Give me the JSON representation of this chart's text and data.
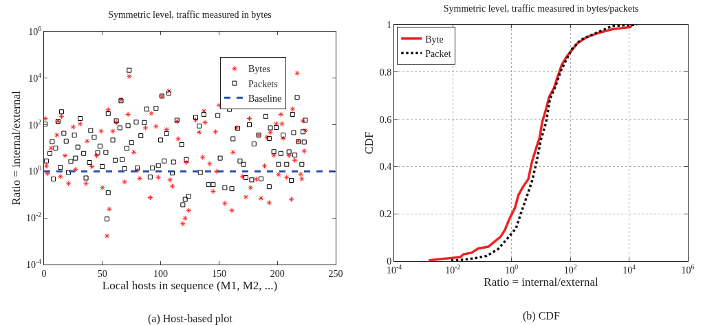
{
  "chart_data": [
    {
      "type": "scatter",
      "title": "Symmetric level, traffic measured in bytes",
      "xlabel": "Local hosts in sequence (M1, M2, ...)",
      "ylabel": "Ratio = internal/external",
      "log": "y",
      "grid": false,
      "legend": "top right",
      "xlim": [
        0,
        250
      ],
      "xticks": [
        0,
        50,
        100,
        150,
        200,
        250
      ],
      "ylim": [
        0.0001,
        1000000
      ],
      "yticks": [
        {
          "value": 0.0001,
          "label": "10$^{-4}$"
        },
        {
          "value": 0.01,
          "label": "10$^{-2}$"
        },
        {
          "value": 1,
          "label": "10$^{0}$"
        },
        {
          "value": 100,
          "label": "10$^{2}$"
        },
        {
          "value": 10000,
          "label": "10$^{4}$"
        },
        {
          "value": 1000000,
          "label": "10$^{6}$"
        }
      ],
      "series": [
        {
          "name": "Bytes",
          "color": "#ff2020",
          "marker": "cross",
          "x": [
            1,
            2,
            3,
            6,
            11,
            12,
            14,
            15,
            18,
            21,
            25,
            27,
            31,
            36,
            37,
            41,
            45,
            49,
            50,
            54,
            55,
            56,
            59,
            62,
            66,
            69,
            72,
            73,
            77,
            80,
            82,
            87,
            91,
            92,
            96,
            98,
            101,
            105,
            107,
            108,
            110,
            114,
            115,
            119,
            121,
            124,
            122,
            130,
            133,
            137,
            138,
            136,
            142,
            145,
            148,
            150,
            147,
            155,
            161,
            162,
            165,
            170,
            173,
            176,
            177,
            182,
            184,
            186,
            189,
            191,
            193,
            194,
            197,
            199,
            201,
            203,
            204,
            205,
            208,
            210,
            212,
            213,
            215,
            217,
            218,
            220,
            221,
            222,
            223,
            224
          ],
          "values": [
            185,
            1.7,
            0.8,
            10,
            36,
            140,
            0.6,
            230,
            4.7,
            0.3,
            80,
            1.2,
            110,
            0.3,
            20,
            1.6,
            4.7,
            53,
            0.2,
            0.0017,
            440,
            0.024,
            53,
            125,
            1200,
            0.35,
            280,
            12000,
            6.6,
            1.1,
            0.5,
            74,
            0.075,
            310,
            85,
            0.55,
            1700,
            63,
            2800,
            0.43,
            0.23,
            140,
            25,
            0.0056,
            0.0098,
            0.021,
            2.4,
            160,
            48,
            390,
            125,
            4,
            2.1,
            0.14,
            1,
            690,
            50,
            0.042,
            0.021,
            6.6,
            74,
            0.6,
            0.079,
            185,
            0.2,
            0.46,
            36,
            0.07,
            1.7,
            29,
            0.045,
            47,
            4.9,
            110,
            0.73,
            280,
            110,
            26,
            0.55,
            4.7,
            0.063,
            470,
            3,
            16500,
            20,
            0.76,
            0.48,
            147,
            7.4,
            57
          ]
        },
        {
          "name": "Packets",
          "color": "#000000",
          "marker": "square",
          "x": [
            1,
            2,
            5,
            7,
            8,
            10,
            12,
            14,
            15,
            17,
            19,
            21,
            23,
            26,
            27,
            29,
            31,
            34,
            36,
            39,
            40,
            43,
            46,
            48,
            50,
            53,
            54,
            55,
            55,
            59,
            61,
            62,
            65,
            66,
            67,
            69,
            71,
            72,
            73,
            75,
            79,
            80,
            83,
            86,
            88,
            91,
            93,
            96,
            98,
            100,
            101,
            103,
            105,
            107,
            110,
            111,
            114,
            118,
            119,
            121,
            124,
            122,
            130,
            133,
            134,
            137,
            141,
            145,
            149,
            151,
            155,
            159,
            161,
            162,
            166,
            168,
            171,
            173,
            176,
            178,
            180,
            184,
            186,
            190,
            193,
            193,
            194,
            197,
            199,
            201,
            203,
            205,
            208,
            210,
            212,
            213,
            214,
            215,
            217,
            218,
            221,
            222,
            223,
            224
          ],
          "values": [
            107,
            2.8,
            5.9,
            19,
            0.47,
            10,
            140,
            1.5,
            360,
            43,
            20,
            0.9,
            2.7,
            36,
            3.7,
            11,
            185,
            5.9,
            0.52,
            2.4,
            57,
            29,
            6.3,
            12,
            1.6,
            6.6,
            0.009,
            300,
            0.12,
            22,
            3,
            147,
            74,
            1070,
            3.2,
            1.3,
            9.7,
            92,
            22000,
            17,
            130,
            1.4,
            34,
            125,
            470,
            0.57,
            1.4,
            510,
            1.8,
            22,
            1700,
            2.8,
            42,
            2300,
            0.85,
            2.5,
            157,
            14,
            0.037,
            0.063,
            0.085,
            3.2,
            210,
            89,
            0.9,
            280,
            0.27,
            0.27,
            250,
            3.7,
            0.2,
            460,
            0.18,
            25,
            71,
            2.8,
            2,
            0.54,
            100,
            0.43,
            15,
            36,
            0.48,
            230,
            26,
            0.22,
            74,
            7,
            76,
            2,
            5.9,
            36,
            2,
            6.9,
            0.41,
            280,
            46,
            5,
            1500,
            19,
            2,
            50,
            18,
            157
          ]
        }
      ],
      "ref_lines": [
        {
          "axis": "y",
          "value": 1,
          "label": "Baseline",
          "color": "#2a4fa8",
          "line_style": "dashed"
        }
      ],
      "annotations": [
        "(a) Host-based plot"
      ]
    },
    {
      "type": "line",
      "title": "Symmetric level, traffic measured in bytes/packets",
      "xlabel": "Ratio = internal/external",
      "ylabel": "CDF",
      "log": "x",
      "grid": true,
      "legend": "top left",
      "xlim": [
        0.0001,
        1000000
      ],
      "xticks": [
        {
          "value": 0.0001,
          "label": "10$^{-4}$"
        },
        {
          "value": 0.01,
          "label": "10$^{-2}$"
        },
        {
          "value": 1,
          "label": "10$^{0}$"
        },
        {
          "value": 100,
          "label": "10$^{2}$"
        },
        {
          "value": 10000,
          "label": "10$^{4}$"
        },
        {
          "value": 1000000,
          "label": "10$^{6}$"
        }
      ],
      "ylim": [
        0,
        1
      ],
      "yticks": [
        0,
        0.2,
        0.4,
        0.6,
        0.8,
        1
      ],
      "series": [
        {
          "name": "Byte",
          "color": "#ee2222",
          "line_style": "solid",
          "x": [
            0.0015,
            0.0051,
            0.018,
            0.023,
            0.043,
            0.072,
            0.16,
            0.25,
            0.42,
            0.59,
            0.83,
            1.3,
            1.7,
            2.4,
            3.7,
            4.9,
            6.6,
            8.9,
            11,
            14,
            19,
            28,
            36,
            51,
            74,
            115,
            178,
            355,
            930,
            2700,
            11000,
            12600
          ],
          "values": [
            0.003,
            0.01,
            0.017,
            0.029,
            0.035,
            0.053,
            0.061,
            0.08,
            0.103,
            0.132,
            0.177,
            0.226,
            0.279,
            0.313,
            0.347,
            0.419,
            0.472,
            0.521,
            0.589,
            0.632,
            0.695,
            0.734,
            0.777,
            0.831,
            0.864,
            0.894,
            0.923,
            0.947,
            0.966,
            0.981,
            0.99,
            1
          ]
        },
        {
          "name": "Packet",
          "color": "#111111",
          "line_style": "dotted",
          "x": [
            0.0087,
            0.025,
            0.06,
            0.14,
            0.35,
            0.71,
            1.4,
            2,
            3.2,
            4.9,
            6.9,
            9.8,
            15,
            20,
            31,
            48,
            68,
            115,
            230,
            790,
            2700,
            18600
          ],
          "values": [
            0.003,
            0.006,
            0.013,
            0.022,
            0.051,
            0.095,
            0.138,
            0.197,
            0.269,
            0.337,
            0.414,
            0.511,
            0.589,
            0.685,
            0.739,
            0.806,
            0.845,
            0.898,
            0.937,
            0.966,
            0.995,
            1
          ]
        }
      ],
      "annotations": [
        "(b) CDF"
      ]
    }
  ]
}
